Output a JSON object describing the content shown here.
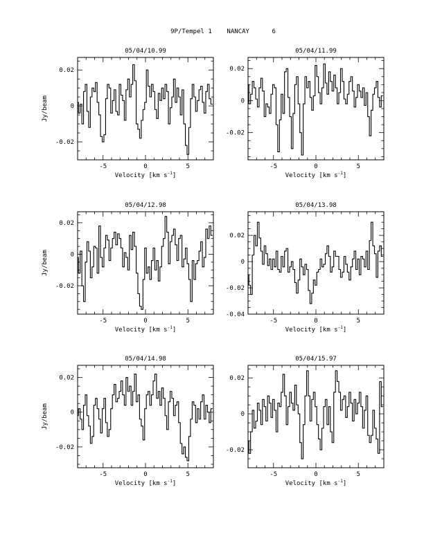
{
  "page_title": "9P/Tempel 1    NANCAY      6",
  "chart_data": [
    {
      "type": "line",
      "title": "05/04/10.99",
      "xlabel": "Velocity [km s",
      "xlabel_sup": "-1",
      "xlabel_close": "]",
      "ylabel": "Jy/beam",
      "xlim": [
        -8,
        8
      ],
      "ylim": [
        -0.03,
        0.027
      ],
      "xticks": [
        -5,
        0,
        5
      ],
      "xtick_labels": [
        "-5",
        "0",
        "5"
      ],
      "yticks": [
        -0.02,
        0,
        0.02
      ],
      "ytick_labels": [
        "-0.02",
        "0",
        "0.02"
      ],
      "grid": false,
      "x": [
        -8.0,
        -7.8,
        -7.6,
        -7.4,
        -7.2,
        -7.0,
        -6.8,
        -6.6,
        -6.4,
        -6.2,
        -6.0,
        -5.8,
        -5.6,
        -5.4,
        -5.2,
        -5.0,
        -4.8,
        -4.6,
        -4.4,
        -4.2,
        -4.0,
        -3.8,
        -3.6,
        -3.4,
        -3.2,
        -3.0,
        -2.8,
        -2.6,
        -2.4,
        -2.2,
        -2.0,
        -1.8,
        -1.6,
        -1.4,
        -1.2,
        -1.0,
        -0.8,
        -0.6,
        -0.4,
        -0.2,
        0.0,
        0.2,
        0.4,
        0.6,
        0.8,
        1.0,
        1.2,
        1.4,
        1.6,
        1.8,
        2.0,
        2.2,
        2.4,
        2.6,
        2.8,
        3.0,
        3.2,
        3.4,
        3.6,
        3.8,
        4.0,
        4.2,
        4.4,
        4.6,
        4.8,
        5.0,
        5.2,
        5.4,
        5.6,
        5.8,
        6.0,
        6.2,
        6.4,
        6.6,
        6.8,
        7.0,
        7.2,
        7.4,
        7.6,
        7.8
      ],
      "y": [
        0.002,
        -0.004,
        0.001,
        -0.01,
        0.008,
        0.012,
        -0.003,
        -0.012,
        0.005,
        0.01,
        0.008,
        0.013,
        0.002,
        -0.005,
        -0.017,
        -0.02,
        -0.016,
        0.004,
        0.012,
        0.01,
        -0.004,
        0.003,
        0.009,
        -0.003,
        -0.005,
        0.012,
        0.006,
        0.003,
        -0.008,
        0.009,
        0.015,
        0.005,
        0.012,
        0.023,
        0.014,
        -0.01,
        -0.013,
        -0.018,
        -0.008,
        -0.002,
        0.002,
        0.02,
        0.011,
        0.005,
        0.012,
        0.008,
        -0.002,
        -0.007,
        0.007,
        0.003,
        0.01,
        0.004,
        0.012,
        0.008,
        -0.01,
        -0.001,
        0.005,
        0.015,
        0.002,
        0.01,
        0.005,
        -0.005,
        0.009,
        -0.01,
        -0.022,
        -0.027,
        -0.012,
        0.004,
        0.012,
        0.005,
        -0.003,
        0.003,
        0.009,
        0.011,
        0.002,
        -0.004,
        0.008,
        0.012,
        0.004,
        0.001
      ]
    },
    {
      "type": "line",
      "title": "05/04/11.99",
      "xlabel": "Velocity [km s",
      "xlabel_sup": "-1",
      "xlabel_close": "]",
      "ylabel": "",
      "xlim": [
        -8,
        8
      ],
      "ylim": [
        -0.037,
        0.027
      ],
      "xticks": [
        -5,
        0,
        5
      ],
      "xtick_labels": [
        "-5",
        "0",
        "5"
      ],
      "yticks": [
        -0.02,
        0,
        0.02
      ],
      "ytick_labels": [
        "-0.02",
        "0",
        "0.02"
      ],
      "grid": false,
      "x": [
        -8.0,
        -7.8,
        -7.6,
        -7.4,
        -7.2,
        -7.0,
        -6.8,
        -6.6,
        -6.4,
        -6.2,
        -6.0,
        -5.8,
        -5.6,
        -5.4,
        -5.2,
        -5.0,
        -4.8,
        -4.6,
        -4.4,
        -4.2,
        -4.0,
        -3.8,
        -3.6,
        -3.4,
        -3.2,
        -3.0,
        -2.8,
        -2.6,
        -2.4,
        -2.2,
        -2.0,
        -1.8,
        -1.6,
        -1.4,
        -1.2,
        -1.0,
        -0.8,
        -0.6,
        -0.4,
        -0.2,
        0.0,
        0.2,
        0.4,
        0.6,
        0.8,
        1.0,
        1.2,
        1.4,
        1.6,
        1.8,
        2.0,
        2.2,
        2.4,
        2.6,
        2.8,
        3.0,
        3.2,
        3.4,
        3.6,
        3.8,
        4.0,
        4.2,
        4.4,
        4.6,
        4.8,
        5.0,
        5.2,
        5.4,
        5.6,
        5.8,
        6.0,
        6.2,
        6.4,
        6.6,
        6.8,
        7.0,
        7.2,
        7.4,
        7.6,
        7.8
      ],
      "y": [
        0.01,
        -0.002,
        0.004,
        0.012,
        0.008,
        0.001,
        -0.004,
        0.008,
        0.014,
        0.006,
        -0.01,
        -0.002,
        -0.004,
        -0.008,
        0.004,
        0.01,
        0.008,
        -0.015,
        -0.032,
        -0.012,
        0.004,
        -0.008,
        0.018,
        0.02,
        0.002,
        -0.01,
        -0.03,
        -0.008,
        0.01,
        0.015,
        -0.002,
        -0.02,
        -0.034,
        -0.002,
        0.015,
        0.008,
        0.012,
        0.002,
        -0.006,
        0.003,
        0.022,
        0.015,
        0.005,
        -0.002,
        0.008,
        0.023,
        0.011,
        0.004,
        0.018,
        0.012,
        0.006,
        0.016,
        0.008,
        -0.002,
        0.005,
        0.02,
        0.012,
        0.001,
        -0.002,
        0.004,
        0.012,
        0.015,
        0.006,
        -0.004,
        0.002,
        0.01,
        0.006,
        0.002,
        0.008,
        -0.003,
        0.005,
        -0.01,
        -0.022,
        -0.006,
        0.004,
        0.008,
        0.012,
        0.002,
        -0.004,
        0.003
      ]
    },
    {
      "type": "line",
      "title": "05/04/12.98",
      "xlabel": "Velocity [km s",
      "xlabel_sup": "-1",
      "xlabel_close": "]",
      "ylabel": "Jy/beam",
      "xlim": [
        -8,
        8
      ],
      "ylim": [
        -0.038,
        0.027
      ],
      "xticks": [
        -5,
        0,
        5
      ],
      "xtick_labels": [
        "-5",
        "0",
        "5"
      ],
      "yticks": [
        -0.02,
        0,
        0.02
      ],
      "ytick_labels": [
        "-0.02",
        "0",
        "0.02"
      ],
      "grid": false,
      "x": [
        -8.0,
        -7.8,
        -7.6,
        -7.4,
        -7.2,
        -7.0,
        -6.8,
        -6.6,
        -6.4,
        -6.2,
        -6.0,
        -5.8,
        -5.6,
        -5.4,
        -5.2,
        -5.0,
        -4.8,
        -4.6,
        -4.4,
        -4.2,
        -4.0,
        -3.8,
        -3.6,
        -3.4,
        -3.2,
        -3.0,
        -2.8,
        -2.6,
        -2.4,
        -2.2,
        -2.0,
        -1.8,
        -1.6,
        -1.4,
        -1.2,
        -1.0,
        -0.8,
        -0.6,
        -0.4,
        -0.2,
        0.0,
        0.2,
        0.4,
        0.6,
        0.8,
        1.0,
        1.2,
        1.4,
        1.6,
        1.8,
        2.0,
        2.2,
        2.4,
        2.6,
        2.8,
        3.0,
        3.2,
        3.4,
        3.6,
        3.8,
        4.0,
        4.2,
        4.4,
        4.6,
        4.8,
        5.0,
        5.2,
        5.4,
        5.6,
        5.8,
        6.0,
        6.2,
        6.4,
        6.6,
        6.8,
        7.0,
        7.2,
        7.4,
        7.6,
        7.8
      ],
      "y": [
        -0.002,
        -0.012,
        0.002,
        -0.02,
        -0.03,
        -0.005,
        0.008,
        0.002,
        -0.015,
        -0.008,
        0.005,
        0.004,
        -0.012,
        0.018,
        -0.002,
        -0.008,
        0.004,
        0.012,
        0.009,
        -0.004,
        0.004,
        0.01,
        0.014,
        0.006,
        0.013,
        0.01,
        0.004,
        -0.008,
        0.001,
        -0.002,
        -0.01,
        0.012,
        0.003,
        0.014,
        0.005,
        -0.012,
        -0.025,
        -0.033,
        -0.035,
        -0.016,
        0.004,
        -0.012,
        -0.008,
        -0.016,
        -0.004,
        0.004,
        -0.01,
        -0.004,
        -0.017,
        -0.008,
        0.005,
        0.01,
        0.024,
        0.014,
        -0.006,
        0.008,
        0.012,
        0.016,
        0.006,
        -0.004,
        0.01,
        0.012,
        -0.008,
        -0.003,
        0.004,
        -0.006,
        -0.016,
        -0.03,
        -0.004,
        -0.016,
        -0.006,
        -0.004,
        0.002,
        0.008,
        -0.008,
        -0.002,
        0.016,
        0.01,
        0.018,
        0.012
      ]
    },
    {
      "type": "line",
      "title": "05/04/13.98",
      "xlabel": "Velocity [km s",
      "xlabel_sup": "-1",
      "xlabel_close": "]",
      "ylabel": "",
      "xlim": [
        -8,
        8
      ],
      "ylim": [
        -0.04,
        0.038
      ],
      "xticks": [
        -5,
        0,
        5
      ],
      "xtick_labels": [
        "-5",
        "0",
        "5"
      ],
      "yticks": [
        -0.04,
        -0.02,
        0,
        0.02
      ],
      "ytick_labels": [
        "-0.04",
        "-0.02",
        "0",
        "0.02"
      ],
      "grid": false,
      "x": [
        -8.0,
        -7.8,
        -7.6,
        -7.4,
        -7.2,
        -7.0,
        -6.8,
        -6.6,
        -6.4,
        -6.2,
        -6.0,
        -5.8,
        -5.6,
        -5.4,
        -5.2,
        -5.0,
        -4.8,
        -4.6,
        -4.4,
        -4.2,
        -4.0,
        -3.8,
        -3.6,
        -3.4,
        -3.2,
        -3.0,
        -2.8,
        -2.6,
        -2.4,
        -2.2,
        -2.0,
        -1.8,
        -1.6,
        -1.4,
        -1.2,
        -1.0,
        -0.8,
        -0.6,
        -0.4,
        -0.2,
        0.0,
        0.2,
        0.4,
        0.6,
        0.8,
        1.0,
        1.2,
        1.4,
        1.6,
        1.8,
        2.0,
        2.2,
        2.4,
        2.6,
        2.8,
        3.0,
        3.2,
        3.4,
        3.6,
        3.8,
        4.0,
        4.2,
        4.4,
        4.6,
        4.8,
        5.0,
        5.2,
        5.4,
        5.6,
        5.8,
        6.0,
        6.2,
        6.4,
        6.6,
        6.8,
        7.0,
        7.2,
        7.4,
        7.6,
        7.8
      ],
      "y": [
        -0.01,
        -0.018,
        -0.025,
        0.005,
        0.02,
        0.012,
        0.03,
        0.018,
        0.008,
        -0.002,
        0.012,
        0.006,
        -0.003,
        0.002,
        -0.006,
        0.002,
        -0.004,
        0.008,
        -0.006,
        -0.008,
        0.004,
        -0.004,
        0.008,
        0.01,
        -0.008,
        -0.004,
        0.0,
        -0.006,
        -0.016,
        -0.024,
        -0.014,
        0.002,
        -0.004,
        -0.01,
        -0.002,
        -0.006,
        -0.022,
        -0.032,
        -0.024,
        -0.014,
        -0.018,
        -0.008,
        -0.006,
        0.002,
        -0.004,
        -0.002,
        0.006,
        0.012,
        0.004,
        -0.008,
        -0.004,
        0.008,
        0.004,
        0.004,
        -0.006,
        -0.012,
        -0.008,
        0.004,
        -0.002,
        -0.008,
        -0.014,
        -0.004,
        0.002,
        0.008,
        -0.006,
        0.002,
        -0.01,
        0.004,
        0.002,
        -0.004,
        0.008,
        -0.006,
        0.016,
        0.03,
        0.012,
        0.006,
        -0.012,
        0.008,
        0.012,
        0.004
      ]
    },
    {
      "type": "line",
      "title": "05/04/14.98",
      "xlabel": "Velocity [km s",
      "xlabel_sup": "-1",
      "xlabel_close": "]",
      "ylabel": "Jy/beam",
      "xlim": [
        -8,
        8
      ],
      "ylim": [
        -0.032,
        0.027
      ],
      "xticks": [
        -5,
        0,
        5
      ],
      "xtick_labels": [
        "-5",
        "0",
        "5"
      ],
      "yticks": [
        -0.02,
        0,
        0.02
      ],
      "ytick_labels": [
        "-0.02",
        "0",
        "0.02"
      ],
      "grid": false,
      "x": [
        -8.0,
        -7.8,
        -7.6,
        -7.4,
        -7.2,
        -7.0,
        -6.8,
        -6.6,
        -6.4,
        -6.2,
        -6.0,
        -5.8,
        -5.6,
        -5.4,
        -5.2,
        -5.0,
        -4.8,
        -4.6,
        -4.4,
        -4.2,
        -4.0,
        -3.8,
        -3.6,
        -3.4,
        -3.2,
        -3.0,
        -2.8,
        -2.6,
        -2.4,
        -2.2,
        -2.0,
        -1.8,
        -1.6,
        -1.4,
        -1.2,
        -1.0,
        -0.8,
        -0.6,
        -0.4,
        -0.2,
        0.0,
        0.2,
        0.4,
        0.6,
        0.8,
        1.0,
        1.2,
        1.4,
        1.6,
        1.8,
        2.0,
        2.2,
        2.4,
        2.6,
        2.8,
        3.0,
        3.2,
        3.4,
        3.6,
        3.8,
        4.0,
        4.2,
        4.4,
        4.6,
        4.8,
        5.0,
        5.2,
        5.4,
        5.6,
        5.8,
        6.0,
        6.2,
        6.4,
        6.6,
        6.8,
        7.0,
        7.2,
        7.4,
        7.6,
        7.8
      ],
      "y": [
        -0.002,
        0.002,
        -0.004,
        -0.01,
        0.004,
        0.01,
        -0.002,
        -0.008,
        -0.018,
        -0.014,
        0.004,
        0.008,
        0.002,
        -0.004,
        -0.012,
        0.002,
        0.008,
        -0.006,
        -0.014,
        -0.01,
        0.002,
        0.01,
        0.016,
        0.006,
        0.008,
        0.012,
        0.018,
        0.01,
        0.004,
        0.02,
        0.012,
        0.015,
        0.004,
        0.012,
        0.022,
        0.006,
        0.01,
        -0.004,
        -0.008,
        -0.016,
        0.002,
        0.01,
        0.012,
        0.004,
        0.01,
        0.018,
        0.022,
        0.008,
        0.012,
        0.004,
        0.014,
        0.008,
        -0.002,
        -0.01,
        0.006,
        0.012,
        0.008,
        -0.002,
        0.004,
        0.006,
        -0.006,
        -0.018,
        -0.024,
        -0.02,
        -0.026,
        -0.028,
        -0.014,
        -0.004,
        0.006,
        0.004,
        -0.006,
        0.002,
        -0.004,
        0.006,
        0.01,
        -0.004,
        0.004,
        0.0,
        -0.006,
        0.002
      ]
    },
    {
      "type": "line",
      "title": "05/04/15.97",
      "xlabel": "Velocity [km s",
      "xlabel_sup": "-1",
      "xlabel_close": "]",
      "ylabel": "",
      "xlim": [
        -8,
        8
      ],
      "ylim": [
        -0.03,
        0.027
      ],
      "xticks": [
        -5,
        0,
        5
      ],
      "xtick_labels": [
        "-5",
        "0",
        "5"
      ],
      "yticks": [
        -0.02,
        0,
        0.02
      ],
      "ytick_labels": [
        "-0.02",
        "0",
        "0.02"
      ],
      "grid": false,
      "x": [
        -8.0,
        -7.8,
        -7.6,
        -7.4,
        -7.2,
        -7.0,
        -6.8,
        -6.6,
        -6.4,
        -6.2,
        -6.0,
        -5.8,
        -5.6,
        -5.4,
        -5.2,
        -5.0,
        -4.8,
        -4.6,
        -4.4,
        -4.2,
        -4.0,
        -3.8,
        -3.6,
        -3.4,
        -3.2,
        -3.0,
        -2.8,
        -2.6,
        -2.4,
        -2.2,
        -2.0,
        -1.8,
        -1.6,
        -1.4,
        -1.2,
        -1.0,
        -0.8,
        -0.6,
        -0.4,
        -0.2,
        0.0,
        0.2,
        0.4,
        0.6,
        0.8,
        1.0,
        1.2,
        1.4,
        1.6,
        1.8,
        2.0,
        2.2,
        2.4,
        2.6,
        2.8,
        3.0,
        3.2,
        3.4,
        3.6,
        3.8,
        4.0,
        4.2,
        4.4,
        4.6,
        4.8,
        5.0,
        5.2,
        5.4,
        5.6,
        5.8,
        6.0,
        6.2,
        6.4,
        6.6,
        6.8,
        7.0,
        7.2,
        7.4,
        7.6,
        7.8
      ],
      "y": [
        -0.015,
        -0.022,
        -0.01,
        0.002,
        -0.008,
        -0.004,
        0.006,
        0.002,
        -0.006,
        0.008,
        0.004,
        -0.004,
        0.01,
        0.006,
        -0.002,
        0.008,
        0.002,
        -0.01,
        0.006,
        0.004,
        0.012,
        0.022,
        0.01,
        -0.006,
        0.004,
        0.012,
        0.006,
        0.002,
        0.016,
        0.005,
        0.0,
        -0.016,
        -0.025,
        -0.006,
        0.01,
        0.024,
        0.01,
        -0.004,
        0.008,
        0.012,
        0.004,
        -0.006,
        -0.014,
        -0.02,
        -0.008,
        0.004,
        0.008,
        -0.006,
        0.004,
        -0.01,
        -0.016,
        0.012,
        0.024,
        0.018,
        0.012,
        0.002,
        0.008,
        0.01,
        -0.002,
        0.004,
        0.012,
        0.006,
        -0.004,
        0.008,
        0.0,
        0.006,
        0.012,
        0.004,
        -0.008,
        0.002,
        0.01,
        -0.012,
        -0.016,
        -0.012,
        0.002,
        -0.008,
        -0.014,
        -0.022,
        0.018,
        0.004
      ]
    }
  ]
}
